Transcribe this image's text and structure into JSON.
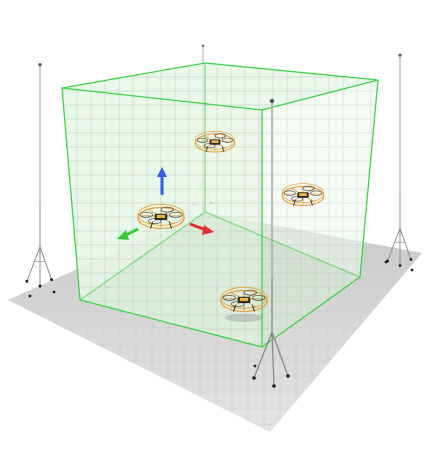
{
  "scene": {
    "background": "#ffffff",
    "floor_color": "#d9d9d9",
    "floor_grid_color": "#c2c2c2",
    "cage_edge_color": "#3fd34a",
    "cage_fill_color": "#e9f7e9",
    "cage_grid_color": "#b9c7b9",
    "tripod_color": "#9a9a9a",
    "marker_color": "#222222",
    "drone_frame_color": "#e8a23c",
    "drone_body_color": "#2b2b2b"
  },
  "drones": [
    {
      "name": "drone-upper-center"
    },
    {
      "name": "drone-right"
    },
    {
      "name": "drone-left"
    },
    {
      "name": "drone-front-floor"
    }
  ],
  "tripods": [
    {
      "name": "tripod-back-left"
    },
    {
      "name": "tripod-back-center"
    },
    {
      "name": "tripod-back-right"
    },
    {
      "name": "tripod-front-center"
    }
  ],
  "axes": [
    {
      "name": "z-axis-arrow",
      "color": "#2f5fe0"
    },
    {
      "name": "y-axis-arrow",
      "color": "#33cc33"
    },
    {
      "name": "x-axis-arrow",
      "color": "#e03030"
    }
  ]
}
